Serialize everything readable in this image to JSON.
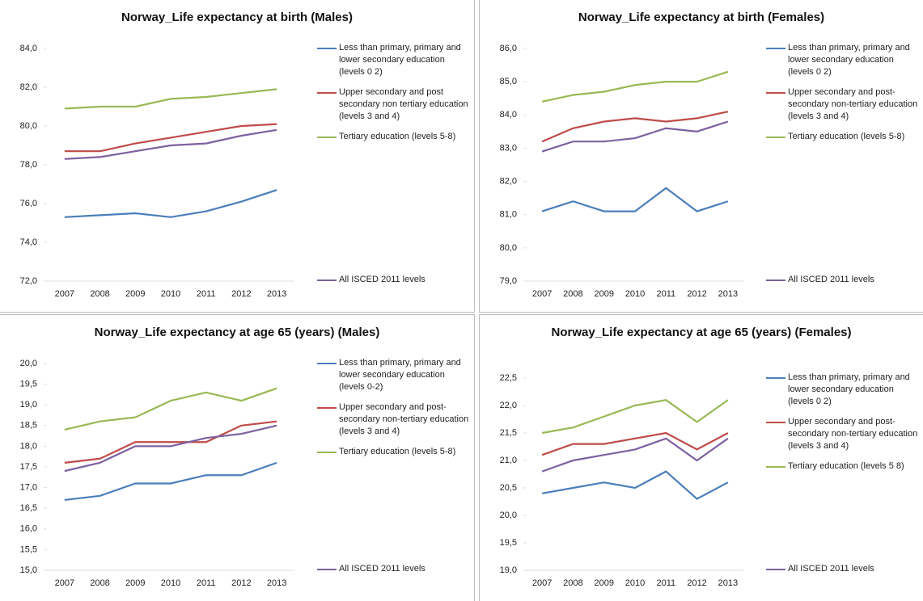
{
  "chart_data": [
    {
      "type": "line",
      "title": "Norway_Life expectancy at birth (Males)",
      "categories": [
        "2007",
        "2008",
        "2009",
        "2010",
        "2011",
        "2012",
        "2013"
      ],
      "ylim": [
        72,
        84
      ],
      "yticks": [
        {
          "value": 72,
          "label": "72,0"
        },
        {
          "value": 74,
          "label": "74,0"
        },
        {
          "value": 76,
          "label": "76,0"
        },
        {
          "value": 78,
          "label": "78,0"
        },
        {
          "value": 80,
          "label": "80,0"
        },
        {
          "value": 82,
          "label": "82,0"
        },
        {
          "value": 84,
          "label": "84,0"
        }
      ],
      "series": [
        {
          "name": "Less than primary, primary and lower secondary education (levels 0 2)",
          "color": "#4a7ebb",
          "values": [
            75.3,
            75.4,
            75.5,
            75.3,
            75.6,
            76.1,
            76.7
          ]
        },
        {
          "name": "Upper secondary and post secondary non tertiary education (levels 3 and 4)",
          "color": "#be4b48",
          "values": [
            78.7,
            78.7,
            79.1,
            79.4,
            79.7,
            80.0,
            80.1
          ]
        },
        {
          "name": "Tertiary education (levels 5-8)",
          "color": "#98b954",
          "values": [
            80.9,
            81.0,
            81.0,
            81.4,
            81.5,
            81.7,
            81.9
          ]
        },
        {
          "name": "All ISCED 2011 levels",
          "color": "#7d60a0",
          "values": [
            78.3,
            78.4,
            78.7,
            79.0,
            79.1,
            79.5,
            79.8
          ]
        }
      ]
    },
    {
      "type": "line",
      "title": "Norway_Life expectancy at birth (Females)",
      "categories": [
        "2007",
        "2008",
        "2009",
        "2010",
        "2011",
        "2012",
        "2013"
      ],
      "ylim": [
        79,
        86
      ],
      "yticks": [
        {
          "value": 79,
          "label": "79,0"
        },
        {
          "value": 80,
          "label": "80,0"
        },
        {
          "value": 81,
          "label": "81,0"
        },
        {
          "value": 82,
          "label": "82,0"
        },
        {
          "value": 83,
          "label": "83,0"
        },
        {
          "value": 84,
          "label": "84,0"
        },
        {
          "value": 85,
          "label": "85,0"
        },
        {
          "value": 86,
          "label": "86,0"
        }
      ],
      "series": [
        {
          "name": "Less than primary, primary and lower secondary education (levels 0 2)",
          "color": "#4a7ebb",
          "values": [
            81.1,
            81.4,
            81.1,
            81.1,
            81.8,
            81.1,
            81.4
          ]
        },
        {
          "name": "Upper secondary and post-secondary non-tertiary education (levels 3 and 4)",
          "color": "#be4b48",
          "values": [
            83.2,
            83.6,
            83.8,
            83.9,
            83.8,
            83.9,
            84.1
          ]
        },
        {
          "name": "Tertiary education (levels 5-8)",
          "color": "#98b954",
          "values": [
            84.4,
            84.6,
            84.7,
            84.9,
            85.0,
            85.0,
            85.3
          ]
        },
        {
          "name": "All ISCED 2011 levels",
          "color": "#7d60a0",
          "values": [
            82.9,
            83.2,
            83.2,
            83.3,
            83.6,
            83.5,
            83.8
          ]
        }
      ]
    },
    {
      "type": "line",
      "title": "Norway_Life expectancy at age 65 (years) (Males)",
      "categories": [
        "2007",
        "2008",
        "2009",
        "2010",
        "2011",
        "2012",
        "2013"
      ],
      "ylim": [
        15,
        20
      ],
      "yticks": [
        {
          "value": 15,
          "label": "15,0"
        },
        {
          "value": 15.5,
          "label": "15,5"
        },
        {
          "value": 16,
          "label": "16,0"
        },
        {
          "value": 16.5,
          "label": "16,5"
        },
        {
          "value": 17,
          "label": "17,0"
        },
        {
          "value": 17.5,
          "label": "17,5"
        },
        {
          "value": 18,
          "label": "18,0"
        },
        {
          "value": 18.5,
          "label": "18,5"
        },
        {
          "value": 19,
          "label": "19,0"
        },
        {
          "value": 19.5,
          "label": "19,5"
        },
        {
          "value": 20,
          "label": "20,0"
        }
      ],
      "series": [
        {
          "name": "Less than primary, primary and lower secondary education (levels 0-2)",
          "color": "#4a7ebb",
          "values": [
            16.7,
            16.8,
            17.1,
            17.1,
            17.3,
            17.3,
            17.6
          ]
        },
        {
          "name": "Upper secondary and post-secondary non-tertiary education (levels 3 and 4)",
          "color": "#be4b48",
          "values": [
            17.6,
            17.7,
            18.1,
            18.1,
            18.1,
            18.5,
            18.6
          ]
        },
        {
          "name": "Tertiary education (levels 5-8)",
          "color": "#98b954",
          "values": [
            18.4,
            18.6,
            18.7,
            19.1,
            19.3,
            19.1,
            19.4
          ]
        },
        {
          "name": "All ISCED 2011 levels",
          "color": "#7d60a0",
          "values": [
            17.4,
            17.6,
            18.0,
            18.0,
            18.2,
            18.3,
            18.5
          ]
        }
      ]
    },
    {
      "type": "line",
      "title": "Norway_Life expectancy at age 65 (years) (Females)",
      "categories": [
        "2007",
        "2008",
        "2009",
        "2010",
        "2011",
        "2012",
        "2013"
      ],
      "ylim": [
        19,
        22.5
      ],
      "yticks": [
        {
          "value": 19,
          "label": "19,0"
        },
        {
          "value": 19.5,
          "label": "19,5"
        },
        {
          "value": 20,
          "label": "20,0"
        },
        {
          "value": 20.5,
          "label": "20,5"
        },
        {
          "value": 21,
          "label": "21,0"
        },
        {
          "value": 21.5,
          "label": "21,5"
        },
        {
          "value": 22,
          "label": "22,0"
        },
        {
          "value": 22.5,
          "label": "22,5"
        }
      ],
      "series": [
        {
          "name": "Less than primary, primary and lower secondary education (levels 0 2)",
          "color": "#4a7ebb",
          "values": [
            20.4,
            20.5,
            20.6,
            20.5,
            20.8,
            20.3,
            20.6
          ]
        },
        {
          "name": "Upper secondary and post-secondary non-tertiary education (levels 3 and 4)",
          "color": "#be4b48",
          "values": [
            21.1,
            21.3,
            21.3,
            21.4,
            21.5,
            21.2,
            21.5
          ]
        },
        {
          "name": "Tertiary education (levels 5 8)",
          "color": "#98b954",
          "values": [
            21.5,
            21.6,
            21.8,
            22.0,
            22.1,
            21.7,
            22.1
          ]
        },
        {
          "name": "All ISCED 2011 levels",
          "color": "#7d60a0",
          "values": [
            20.8,
            21.0,
            21.1,
            21.2,
            21.4,
            21.0,
            21.4
          ]
        }
      ]
    }
  ]
}
